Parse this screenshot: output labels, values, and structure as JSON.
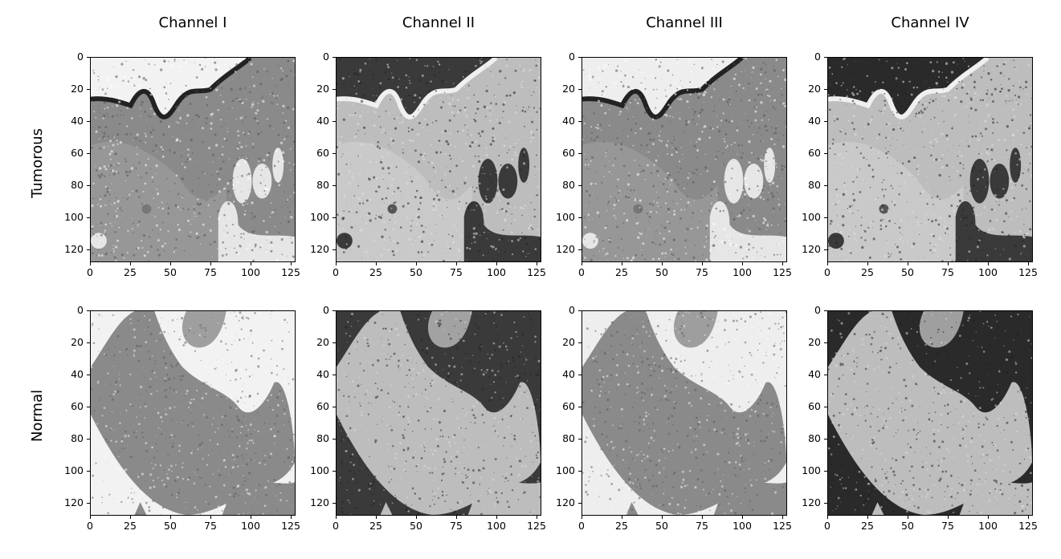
{
  "columns": [
    "Channel I",
    "Channel II",
    "Channel III",
    "Channel IV"
  ],
  "rows": [
    "Tumorous",
    "Normal"
  ],
  "axes": {
    "x_ticks": [
      "0",
      "25",
      "50",
      "75",
      "100",
      "125"
    ],
    "y_ticks": [
      "0",
      "20",
      "40",
      "60",
      "80",
      "100",
      "120"
    ]
  },
  "panels": [
    {
      "row": "Tumorous",
      "column": "Channel I",
      "image": "grayscale-histology-tumorous-channel-1"
    },
    {
      "row": "Tumorous",
      "column": "Channel II",
      "image": "grayscale-histology-tumorous-channel-2"
    },
    {
      "row": "Tumorous",
      "column": "Channel III",
      "image": "grayscale-histology-tumorous-channel-3"
    },
    {
      "row": "Tumorous",
      "column": "Channel IV",
      "image": "grayscale-histology-tumorous-channel-4"
    },
    {
      "row": "Normal",
      "column": "Channel I",
      "image": "grayscale-histology-normal-channel-1"
    },
    {
      "row": "Normal",
      "column": "Channel II",
      "image": "grayscale-histology-normal-channel-2"
    },
    {
      "row": "Normal",
      "column": "Channel III",
      "image": "grayscale-histology-normal-channel-3"
    },
    {
      "row": "Normal",
      "column": "Channel IV",
      "image": "grayscale-histology-normal-channel-4"
    }
  ]
}
